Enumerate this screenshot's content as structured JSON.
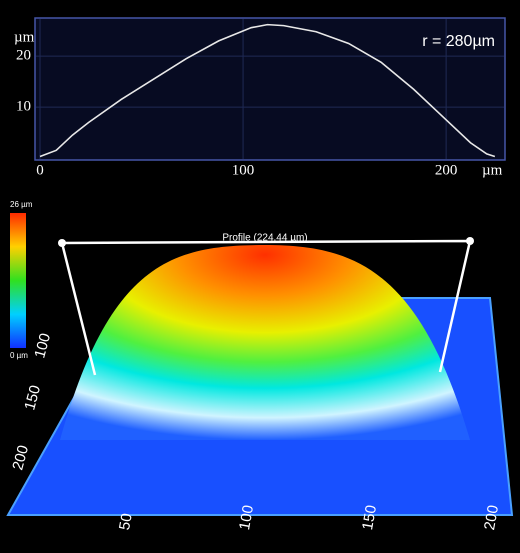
{
  "chart_data": {
    "type": "line",
    "annotation": "r = 280µm",
    "x_unit": "µm",
    "y_unit": "µm",
    "x": [
      0,
      8,
      16,
      24,
      40,
      56,
      72,
      88,
      104,
      112,
      120,
      136,
      152,
      168,
      184,
      200,
      212,
      220,
      224
    ],
    "series": [
      {
        "color": "#e8e8e8",
        "values": [
          0.3,
          1.5,
          4.5,
          7.0,
          11.5,
          15.5,
          19.5,
          23.0,
          25.6,
          26.2,
          26.0,
          24.8,
          22.5,
          18.8,
          13.5,
          7.5,
          3.0,
          0.8,
          0.3
        ]
      }
    ],
    "xlim": [
      0,
      229
    ],
    "ylim": [
      0,
      27.5
    ],
    "xticks": [
      0,
      100,
      200
    ],
    "yticks": [
      10,
      20
    ],
    "grid": true
  },
  "render": {
    "scale_max": "26 µm",
    "scale_min": "0 µm",
    "profile_label": "Profile (224.44 µm)",
    "left_ticks": [
      "100",
      "150",
      "200"
    ],
    "bottom_ticks": [
      "50",
      "100",
      "150",
      "200"
    ]
  }
}
